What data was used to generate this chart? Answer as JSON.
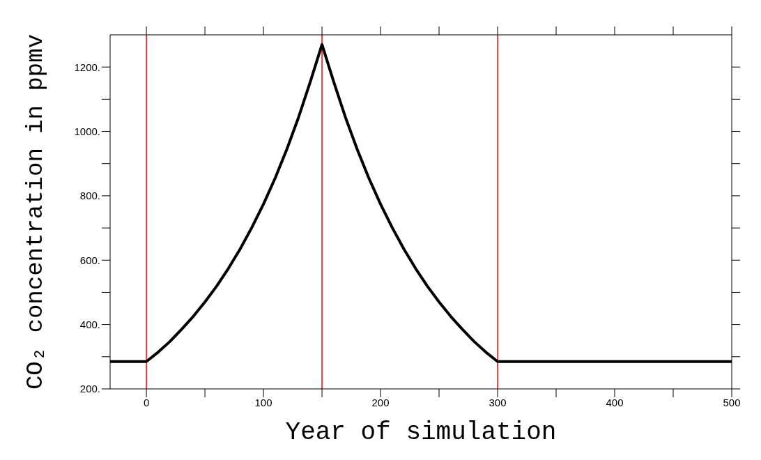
{
  "chart_data": {
    "type": "line",
    "xlabel": "Year of simulation",
    "ylabel": "CO₂ concentration in ppmv",
    "x": [
      -31,
      0,
      10,
      20,
      30,
      40,
      50,
      60,
      70,
      80,
      90,
      100,
      110,
      120,
      130,
      140,
      150,
      160,
      170,
      180,
      190,
      200,
      210,
      220,
      230,
      240,
      250,
      260,
      270,
      280,
      290,
      300,
      400,
      500
    ],
    "series": [
      {
        "color": "#000000",
        "values": [
          285,
          285,
          314,
          347,
          385,
          425,
          470,
          519,
          574,
          634,
          701,
          774,
          855,
          945,
          1044,
          1154,
          1270,
          1154,
          1044,
          945,
          855,
          774,
          701,
          634,
          574,
          519,
          470,
          425,
          385,
          347,
          314,
          285,
          285,
          285
        ]
      }
    ],
    "xlim": [
      -31,
      500
    ],
    "xticks": [
      0,
      {
        "value": 50,
        "label": null
      },
      100,
      {
        "value": 150,
        "label": null
      },
      200,
      {
        "value": 250,
        "label": null
      },
      300,
      {
        "value": 350,
        "label": null
      },
      400,
      {
        "value": 450,
        "label": null
      },
      500
    ],
    "ylim": [
      200,
      1300
    ],
    "yticks": [
      {
        "value": 200,
        "label": "200."
      },
      {
        "value": 300,
        "label": null
      },
      {
        "value": 400,
        "label": "400."
      },
      {
        "value": 500,
        "label": null
      },
      {
        "value": 600,
        "label": "600."
      },
      {
        "value": 700,
        "label": null
      },
      {
        "value": 800,
        "label": "800."
      },
      {
        "value": 900,
        "label": null
      },
      {
        "value": 1000,
        "label": "1000."
      },
      {
        "value": 1100,
        "label": null
      },
      {
        "value": 1200,
        "label": "1200."
      }
    ],
    "ref_lines": [
      {
        "axis": "x",
        "value": 0,
        "color": "#ff0000"
      },
      {
        "axis": "x",
        "value": 150,
        "color": "#ff0000"
      },
      {
        "axis": "x",
        "value": 300,
        "color": "#ff0000"
      }
    ],
    "grid": false,
    "legend": false,
    "marker": "none",
    "line_style": "solid"
  }
}
